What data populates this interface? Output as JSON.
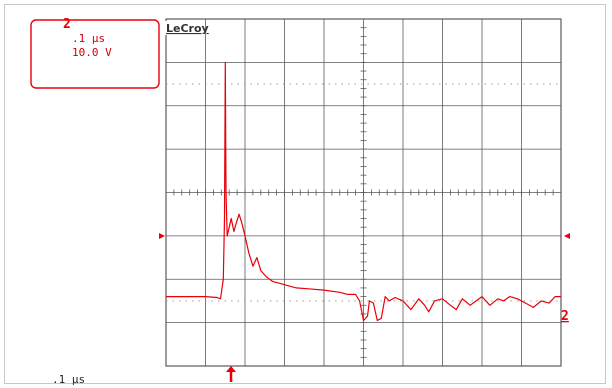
{
  "scope": {
    "brand": "LeCroy",
    "channel_label": "2",
    "timebase": ".1 μs",
    "volts_per_div": "10.0 V",
    "footer_timebase": ".1 μs",
    "trace_marker": "2",
    "colors": {
      "trace": "#e8000b",
      "grid": "#5a5a5a",
      "dotted": "#909090",
      "background": "#ffffff"
    },
    "icons": {
      "trigger_marker": "up-arrow-icon",
      "level_marker_left": "right-triangle-icon",
      "level_marker_right": "left-triangle-icon"
    }
  },
  "chart_data": {
    "type": "line",
    "title": "",
    "xlabel": "",
    "ylabel": "",
    "x_unit_per_div": ".1 μs",
    "y_unit_per_div": "10.0 V",
    "grid": true,
    "divisions": {
      "x": 10,
      "y": 8
    },
    "xlim": [
      0,
      10
    ],
    "ylim": [
      -4,
      4
    ],
    "series": [
      {
        "name": "",
        "x": [
          0,
          0.5,
          1.0,
          1.3,
          1.38,
          1.45,
          1.48,
          1.5,
          1.52,
          1.55,
          1.6,
          1.65,
          1.72,
          1.78,
          1.85,
          1.92,
          2.0,
          2.1,
          2.2,
          2.3,
          2.4,
          2.55,
          2.7,
          2.9,
          3.1,
          3.3,
          3.6,
          4.0,
          4.4,
          4.6,
          4.8,
          4.9,
          5.0,
          5.1,
          5.15,
          5.25,
          5.35,
          5.45,
          5.55,
          5.65,
          5.8,
          6.0,
          6.2,
          6.4,
          6.55,
          6.65,
          6.8,
          7.0,
          7.2,
          7.35,
          7.5,
          7.7,
          7.85,
          8.0,
          8.2,
          8.4,
          8.55,
          8.7,
          8.9,
          9.1,
          9.3,
          9.5,
          9.7,
          9.85,
          10.0
        ],
        "y": [
          -2.4,
          -2.4,
          -2.4,
          -2.42,
          -2.45,
          -2.0,
          -0.6,
          3.0,
          0.0,
          -1.0,
          -0.8,
          -0.6,
          -0.9,
          -0.7,
          -0.5,
          -0.7,
          -1.0,
          -1.4,
          -1.7,
          -1.5,
          -1.8,
          -1.95,
          -2.05,
          -2.1,
          -2.15,
          -2.2,
          -2.22,
          -2.25,
          -2.3,
          -2.35,
          -2.35,
          -2.5,
          -2.95,
          -2.85,
          -2.5,
          -2.55,
          -2.95,
          -2.9,
          -2.4,
          -2.5,
          -2.42,
          -2.5,
          -2.7,
          -2.45,
          -2.6,
          -2.75,
          -2.5,
          -2.45,
          -2.6,
          -2.7,
          -2.45,
          -2.6,
          -2.5,
          -2.4,
          -2.6,
          -2.45,
          -2.5,
          -2.4,
          -2.45,
          -2.55,
          -2.65,
          -2.5,
          -2.55,
          -2.4,
          -2.4
        ]
      }
    ]
  }
}
